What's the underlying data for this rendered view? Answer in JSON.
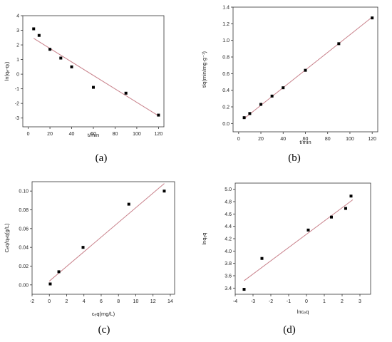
{
  "panels": [
    {
      "label": "(a)",
      "chart_data": {
        "type": "scatter",
        "xlabel": "t/min",
        "ylabel": "ln(qₑ-qₜ)",
        "xlim": [
          -5,
          125
        ],
        "ylim": [
          -3.6,
          4
        ],
        "xticks": [
          0,
          20,
          40,
          60,
          80,
          100,
          120
        ],
        "yticks": [
          -3,
          -2,
          -1,
          0,
          1,
          2,
          3,
          4
        ],
        "grid": false,
        "points": {
          "x": [
            5,
            10,
            20,
            30,
            40,
            60,
            90,
            120
          ],
          "y": [
            3.1,
            2.65,
            1.7,
            1.1,
            0.5,
            -0.9,
            -1.3,
            -2.8
          ]
        },
        "fit_line": {
          "x": [
            5,
            120
          ],
          "y": [
            2.45,
            -2.85
          ]
        }
      }
    },
    {
      "label": "(b)",
      "chart_data": {
        "type": "scatter",
        "xlabel": "t/min",
        "ylabel": "t/q(min/mg·g⁻¹)",
        "xlim": [
          -5,
          125
        ],
        "ylim": [
          -0.1,
          1.4
        ],
        "xticks": [
          0,
          20,
          40,
          60,
          80,
          100,
          120
        ],
        "yticks": [
          0.0,
          0.2,
          0.4,
          0.6,
          0.8,
          1.0,
          1.2,
          1.4
        ],
        "grid": false,
        "points": {
          "x": [
            5,
            10,
            20,
            30,
            40,
            60,
            90,
            120
          ],
          "y": [
            0.07,
            0.12,
            0.23,
            0.33,
            0.43,
            0.64,
            0.96,
            1.27
          ]
        },
        "fit_line": {
          "x": [
            5,
            120
          ],
          "y": [
            0.06,
            1.28
          ]
        }
      }
    },
    {
      "label": "(c)",
      "chart_data": {
        "type": "scatter",
        "xlabel": "cₑq(mg/L)",
        "ylabel": "Cₑq/qₑq(g/L)",
        "xlim": [
          -2,
          14.5
        ],
        "ylim": [
          -0.01,
          0.11
        ],
        "xticks": [
          -2,
          0,
          2,
          4,
          6,
          8,
          10,
          12,
          14
        ],
        "yticks": [
          0.0,
          0.02,
          0.04,
          0.06,
          0.08,
          0.1
        ],
        "grid": false,
        "points": {
          "x": [
            0.1,
            1.1,
            3.9,
            9.2,
            13.3
          ],
          "y": [
            0.001,
            0.014,
            0.04,
            0.086,
            0.1
          ]
        },
        "fit_line": {
          "x": [
            0.0,
            13.3
          ],
          "y": [
            0.004,
            0.108
          ]
        }
      }
    },
    {
      "label": "(d)",
      "chart_data": {
        "type": "scatter",
        "xlabel": "lncₑq",
        "ylabel": "lnqₑq",
        "xlim": [
          -4,
          3.6
        ],
        "ylim": [
          3.3,
          5.1
        ],
        "xticks": [
          -4,
          -3,
          -2,
          -1,
          0,
          1,
          2,
          3
        ],
        "yticks": [
          3.4,
          3.6,
          3.8,
          4.0,
          4.2,
          4.4,
          4.6,
          4.8,
          5.0
        ],
        "grid": false,
        "points": {
          "x": [
            -3.5,
            -2.5,
            0.1,
            1.4,
            2.2,
            2.5
          ],
          "y": [
            3.38,
            3.88,
            4.34,
            4.55,
            4.69,
            4.89
          ]
        },
        "fit_line": {
          "x": [
            -3.5,
            2.6
          ],
          "y": [
            3.52,
            4.83
          ]
        }
      }
    }
  ],
  "colors": {
    "axis": "#333333",
    "marker": "#000000",
    "fit_line": "#c8808a"
  }
}
